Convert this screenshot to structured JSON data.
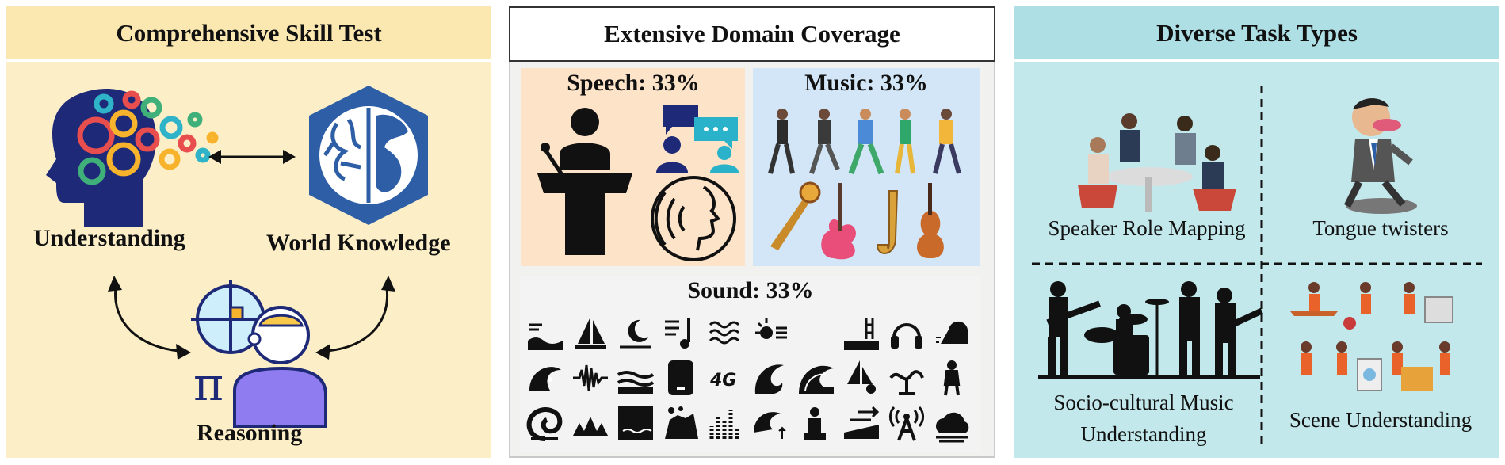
{
  "panels": {
    "skill": {
      "title": "Comprehensive Skill Test",
      "understanding": "Understanding",
      "world_knowledge": "World Knowledge",
      "reasoning": "Reasoning"
    },
    "domain": {
      "title": "Extensive Domain Coverage",
      "speech": "Speech: 33%",
      "music": "Music: 33%",
      "sound": "Sound: 33%"
    },
    "tasks": {
      "title": "Diverse Task Types",
      "speaker_role": "Speaker Role Mapping",
      "tongue": "Tongue twisters",
      "socio_line1": "Socio-cultural Music",
      "socio_line2": "Understanding",
      "scene": "Scene Understanding"
    }
  },
  "colors": {
    "skill_bg": "#fcefc8",
    "domain_bg": "#f1f2f0",
    "tasks_bg": "#c2e8ec",
    "speech_bg": "#fde3c8",
    "music_bg": "#d2e6f7",
    "navy": "#1e2a78",
    "brain_blue": "#2d5ea6"
  }
}
